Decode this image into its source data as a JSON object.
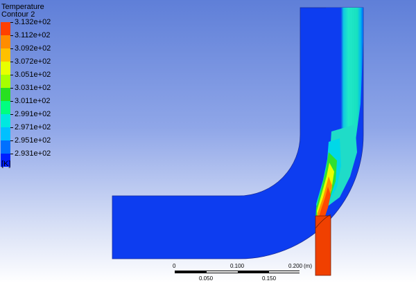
{
  "legend": {
    "title": "Temperature",
    "subtitle": "Contour 2",
    "units": "[K]",
    "labels": [
      "3.132e+02",
      "3.112e+02",
      "3.092e+02",
      "3.072e+02",
      "3.051e+02",
      "3.031e+02",
      "3.011e+02",
      "2.991e+02",
      "2.971e+02",
      "2.951e+02",
      "2.931e+02"
    ],
    "colors": [
      "#ff4000",
      "#ff8c00",
      "#ffc000",
      "#e8ff00",
      "#a6ff00",
      "#28e020",
      "#00ff80",
      "#00e8e0",
      "#00c0ff",
      "#0070ff",
      "#0020ff"
    ]
  },
  "scale": {
    "top_labels": [
      "0",
      "0.100",
      "0.200"
    ],
    "unit": "(m)",
    "bottom_labels": [
      "0.050",
      "0.150"
    ]
  },
  "colors": {
    "background_top": "#5f7fd8",
    "background_bottom": "#ffffff",
    "cold": "#0d3df0",
    "teal": "#1fe6c2",
    "cyan": "#00e8e8",
    "green": "#30e030",
    "yellow": "#f0ff00",
    "orange": "#ff9000",
    "hot": "#f04000"
  }
}
